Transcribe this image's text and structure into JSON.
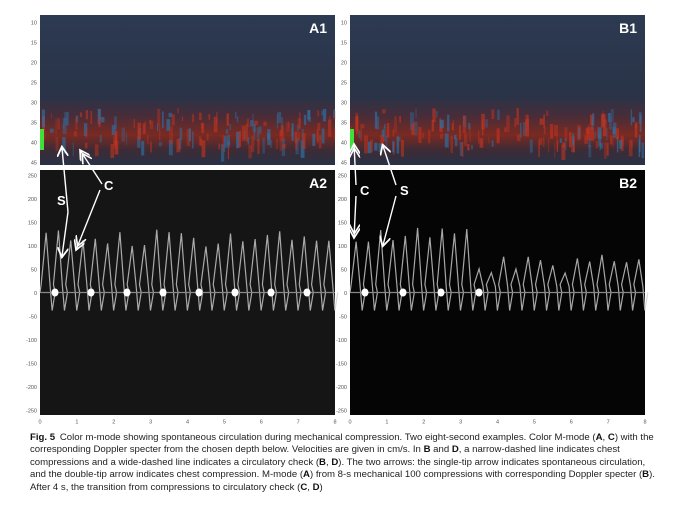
{
  "figure": {
    "panels": {
      "top_left": "A1",
      "top_right": "B1",
      "bottom_left": "A2",
      "bottom_right": "B2"
    },
    "depth_ticks": [
      10,
      15,
      20,
      25,
      30,
      35,
      40,
      45
    ],
    "velocity_ticks": [
      250,
      200,
      150,
      100,
      50,
      0,
      -50,
      -100,
      -150,
      -200,
      -250
    ],
    "time_ticks": [
      0,
      1,
      2,
      3,
      4,
      5,
      6,
      7,
      8
    ],
    "annotations": {
      "a_s": "S",
      "a_c": "C",
      "b_c": "C",
      "b_s": "S"
    }
  },
  "caption": {
    "label": "Fig. 5",
    "parts": [
      "Color m-mode showing spontaneous circulation during mechanical compression. Two eight-second examples. Color M-mode (",
      "A",
      ", ",
      "C",
      ") with the corresponding Doppler specter from the chosen depth below. Velocities are given in cm/s. In ",
      "B",
      " and ",
      "D",
      ", a narrow-dashed line indicates chest compressions and a wide-dashed line indicates a circulatory check (",
      "B",
      ", ",
      "D",
      "). The two arrows: the single-tip arrow indicates spontaneous circulation, and the double-tip arrow indicates chest compression. M-mode (",
      "A",
      ") from 8-s mechanical 100 compressions with corresponding Doppler specter (",
      "B",
      "). After 4 s, the transition from compressions to circulatory check (",
      "C",
      ", ",
      "D",
      ")"
    ]
  }
}
